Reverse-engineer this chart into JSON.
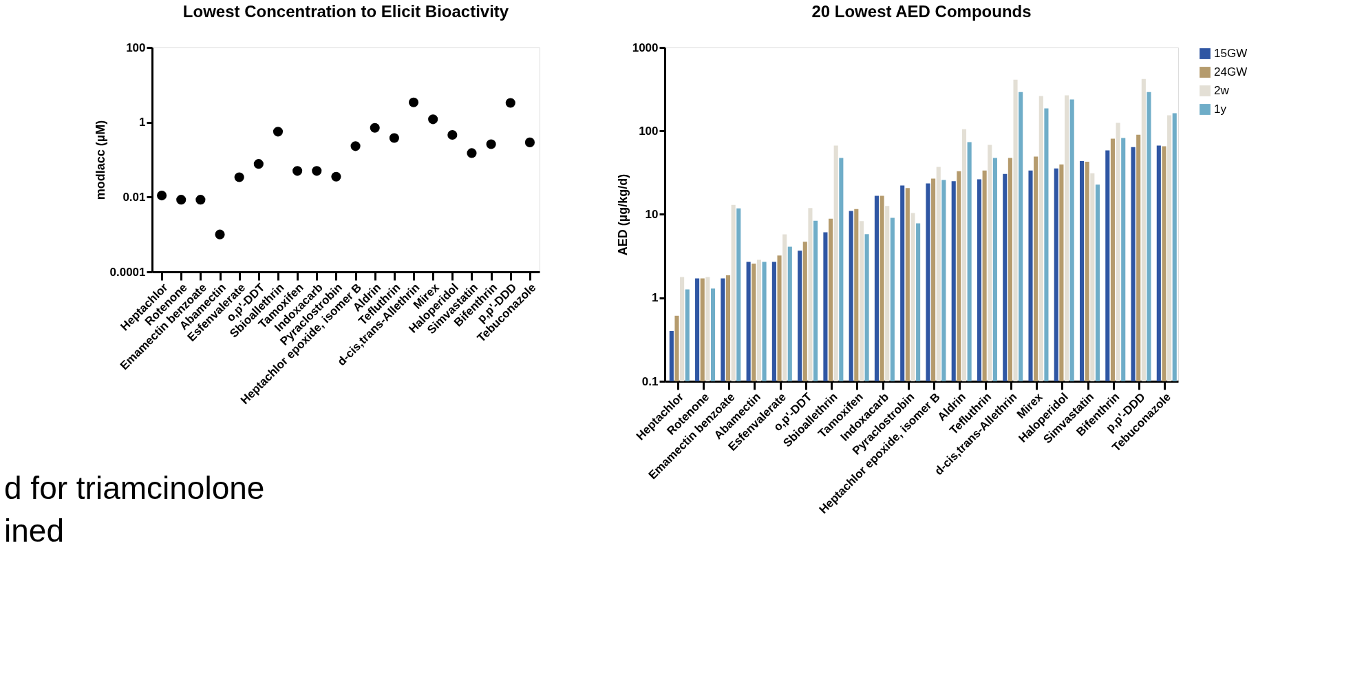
{
  "chart_data": [
    {
      "type": "scatter",
      "title": "Lowest Concentration to Elicit Bioactivity",
      "ylabel": "modlacc (µM)",
      "log": "y",
      "marker": "circle",
      "grid": false,
      "legend": false,
      "categories": [
        "Heptachlor",
        "Rotenone",
        "Emamectin benzoate",
        "Abamectin",
        "Esfenvalerate",
        "o,p'-DDT",
        "Sbioallethrin",
        "Tamoxifen",
        "Indoxacarb",
        "Pyraclostrobin",
        "Heptachlor epoxide, isomer B",
        "Aldrin",
        "Tefluthrin",
        "d-cis,trans-Allethrin",
        "Mirex",
        "Haloperidol",
        "Simvastatin",
        "Bifenthrin",
        "p,p'-DDD",
        "Tebuconazole"
      ],
      "series": [
        {
          "color": "#000000",
          "values": [
            0.011,
            0.0085,
            0.0085,
            0.001,
            0.034,
            0.077,
            0.56,
            0.05,
            0.05,
            0.035,
            0.23,
            0.71,
            0.38,
            3.4,
            1.2,
            0.46,
            0.15,
            0.26,
            3.3,
            0.29
          ]
        }
      ],
      "ylim": [
        0.0001,
        100
      ],
      "yticks": [
        0.0001,
        0.01,
        1,
        100
      ],
      "annotations": [
        "d for triamcinolone",
        "ined"
      ]
    },
    {
      "type": "bar",
      "title": "20 Lowest AED Compounds",
      "ylabel": "AED (µg/kg/d)",
      "log": "y",
      "grid": false,
      "legend": "top right",
      "categories": [
        "Heptachlor",
        "Rotenone",
        "Emamectin benzoate",
        "Abamectin",
        "Esfenvalerate",
        "o,p'-DDT",
        "Sbioallethrin",
        "Tamoxifen",
        "Indoxacarb",
        "Pyraclostrobin",
        "Heptachlor epoxide, isomer B",
        "Aldrin",
        "Tefluthrin",
        "d-cis,trans-Allethrin",
        "Mirex",
        "Haloperidol",
        "Simvastatin",
        "Bifenthrin",
        "p,p'-DDD",
        "Tebuconazole"
      ],
      "series": [
        {
          "name": "15GW",
          "color": "#2f56a3",
          "values": [
            0.4,
            1.71,
            1.71,
            2.7,
            2.7,
            3.68,
            6.1,
            11.0,
            16.7,
            22.2,
            23.5,
            25.0,
            26.3,
            30.5,
            33.6,
            35.5,
            43.6,
            58.4,
            64.1,
            66.8
          ]
        },
        {
          "name": "24GW",
          "color": "#b59b6d",
          "values": [
            0.61,
            1.71,
            1.86,
            2.57,
            3.22,
            4.71,
            8.9,
            11.6,
            16.7,
            20.7,
            26.8,
            33.0,
            33.6,
            47.4,
            49.2,
            39.7,
            42.8,
            80.7,
            90.2,
            65.5
          ]
        },
        {
          "name": "2w",
          "color": "#e3dfd5",
          "values": [
            1.78,
            1.78,
            13.0,
            2.86,
            5.77,
            11.9,
            66.8,
            8.3,
            12.6,
            10.4,
            37.0,
            105,
            68.0,
            412,
            262,
            267,
            31.1,
            125,
            420,
            154
          ]
        },
        {
          "name": "1y",
          "color": "#6fadc8",
          "values": [
            1.26,
            1.29,
            11.8,
            2.7,
            4.1,
            8.4,
            47.4,
            5.8,
            9.1,
            7.8,
            25.9,
            73.4,
            47.4,
            293,
            186,
            238,
            22.7,
            82.2,
            293,
            163
          ]
        }
      ],
      "ylim": [
        0.1,
        1000
      ],
      "yticks": [
        0.1,
        1,
        10,
        100,
        1000
      ]
    }
  ]
}
